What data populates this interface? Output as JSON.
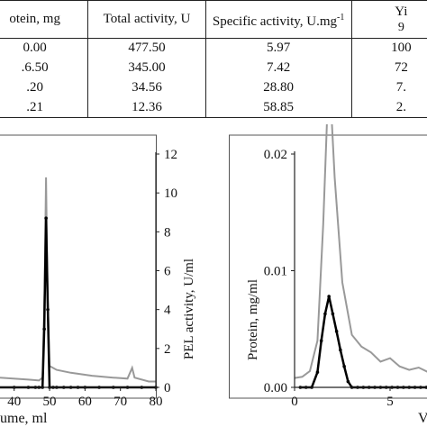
{
  "table": {
    "headers": [
      "otein, mg",
      "Total activity, U",
      "Specific activity, U.mg",
      "Yi"
    ],
    "header_sup": "-1",
    "header_col4_sub": "9",
    "rows": [
      [
        "0.00",
        "477.50",
        "5.97",
        "100"
      ],
      [
        ".6.50",
        "345.00",
        "7.42",
        "72"
      ],
      [
        ".20",
        "34.56",
        "28.80",
        "7."
      ],
      [
        ".21",
        "12.36",
        "58.85",
        "2."
      ]
    ]
  },
  "chart_data": [
    {
      "type": "line",
      "title": "",
      "xlabel": "ume, ml",
      "ylabel_right": "PEL activity, U/ml",
      "x_ticks": [
        "40",
        "50",
        "60",
        "70",
        "80"
      ],
      "y_right_ticks": [
        "0",
        "2",
        "4",
        "6",
        "8",
        "10",
        "12"
      ],
      "xlim": [
        36,
        80
      ],
      "ylim_right": [
        0,
        12
      ],
      "series": [
        {
          "color": "#999999",
          "points": [
            [
              36,
              0.5
            ],
            [
              44,
              0.4
            ],
            [
              47,
              0.35
            ],
            [
              48,
              0.5
            ],
            [
              48.6,
              5
            ],
            [
              49,
              10.8
            ],
            [
              49.4,
              5
            ],
            [
              50,
              1.1
            ],
            [
              52,
              0.9
            ],
            [
              56,
              0.75
            ],
            [
              62,
              0.6
            ],
            [
              68,
              0.5
            ],
            [
              72,
              0.45
            ],
            [
              73.3,
              1.0
            ],
            [
              74,
              0.5
            ],
            [
              78,
              0.3
            ],
            [
              80,
              0.3
            ]
          ]
        },
        {
          "color": "#000000",
          "points": [
            [
              36,
              0
            ],
            [
              40,
              0
            ],
            [
              44,
              0
            ],
            [
              46,
              0
            ],
            [
              47,
              0
            ],
            [
              48,
              0
            ],
            [
              48.5,
              3
            ],
            [
              49,
              8.7
            ],
            [
              49.5,
              4
            ],
            [
              50,
              0
            ],
            [
              51,
              0
            ],
            [
              52,
              0
            ],
            [
              54,
              0
            ],
            [
              56,
              0
            ],
            [
              58,
              0
            ],
            [
              60,
              0
            ],
            [
              64,
              0
            ],
            [
              68,
              0
            ],
            [
              72,
              0
            ],
            [
              76,
              0
            ],
            [
              80,
              0
            ]
          ]
        }
      ]
    },
    {
      "type": "line",
      "title": "",
      "xlabel": "V",
      "ylabel": "Protein, mg/ml",
      "x_ticks": [
        "0",
        "5"
      ],
      "y_ticks": [
        "0.00",
        "0.01",
        "0.02"
      ],
      "xlim": [
        0,
        8.2
      ],
      "ylim": [
        0,
        0.02
      ],
      "series": [
        {
          "color": "#999999",
          "points": [
            [
              0,
              0.0008
            ],
            [
              0.4,
              0.0009
            ],
            [
              0.8,
              0.0014
            ],
            [
              1.2,
              0.004
            ],
            [
              1.5,
              0.014
            ],
            [
              1.8,
              0.0275
            ],
            [
              2.1,
              0.018
            ],
            [
              2.5,
              0.009
            ],
            [
              3.0,
              0.0045
            ],
            [
              3.5,
              0.0035
            ],
            [
              4.0,
              0.003
            ],
            [
              4.5,
              0.0022
            ],
            [
              5.0,
              0.0025
            ],
            [
              5.5,
              0.0018
            ],
            [
              6.0,
              0.0015
            ],
            [
              6.5,
              0.0017
            ],
            [
              7.0,
              0.0013
            ],
            [
              7.5,
              0.0022
            ],
            [
              8.2,
              0.0015
            ]
          ]
        },
        {
          "color": "#000000",
          "points": [
            [
              0.3,
              0
            ],
            [
              0.6,
              0
            ],
            [
              0.9,
              0
            ],
            [
              1.2,
              0.0013
            ],
            [
              1.4,
              0.004
            ],
            [
              1.6,
              0.0063
            ],
            [
              1.8,
              0.0078
            ],
            [
              2.0,
              0.0063
            ],
            [
              2.2,
              0.0048
            ],
            [
              2.4,
              0.0032
            ],
            [
              2.6,
              0.0018
            ],
            [
              2.8,
              0.0005
            ],
            [
              3.0,
              0
            ],
            [
              3.3,
              0
            ],
            [
              3.6,
              0
            ],
            [
              3.9,
              0
            ],
            [
              4.2,
              0
            ],
            [
              4.5,
              0
            ],
            [
              4.8,
              0
            ],
            [
              5.1,
              0
            ],
            [
              5.4,
              0
            ],
            [
              5.7,
              0
            ],
            [
              6.0,
              0
            ],
            [
              6.3,
              0
            ],
            [
              6.6,
              0
            ],
            [
              6.9,
              0
            ],
            [
              7.2,
              0
            ],
            [
              7.5,
              0
            ],
            [
              7.8,
              0
            ],
            [
              8.1,
              0
            ]
          ]
        }
      ]
    }
  ]
}
